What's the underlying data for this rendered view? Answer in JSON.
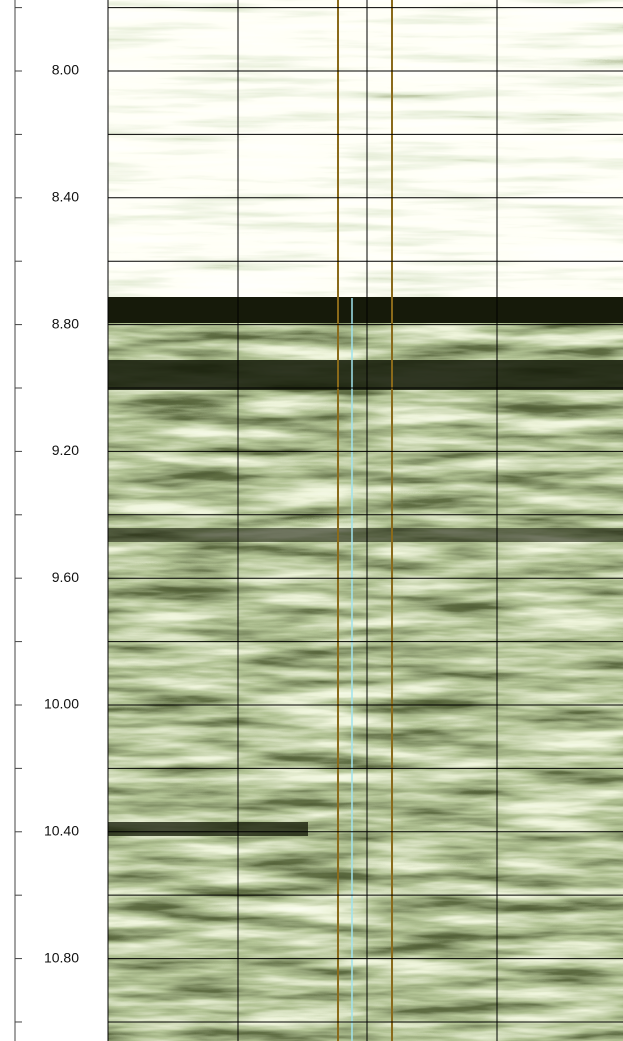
{
  "chart_data": {
    "type": "image-log",
    "ylim": [
      7.776,
      11.06
    ],
    "yticks": [
      {
        "value": 8.0,
        "label": "8.00"
      },
      {
        "value": 8.4,
        "label": "8.40"
      },
      {
        "value": 8.8,
        "label": "8.80"
      },
      {
        "value": 9.2,
        "label": "9.20"
      },
      {
        "value": 9.6,
        "label": "9.60"
      },
      {
        "value": 10.0,
        "label": "10.00"
      },
      {
        "value": 10.4,
        "label": "10.40"
      },
      {
        "value": 10.8,
        "label": "10.80"
      }
    ],
    "minor_yticks": [
      7.8,
      8.2,
      8.6,
      9.0,
      9.4,
      9.8,
      10.2,
      10.6,
      11.0
    ],
    "grid": true
  }
}
